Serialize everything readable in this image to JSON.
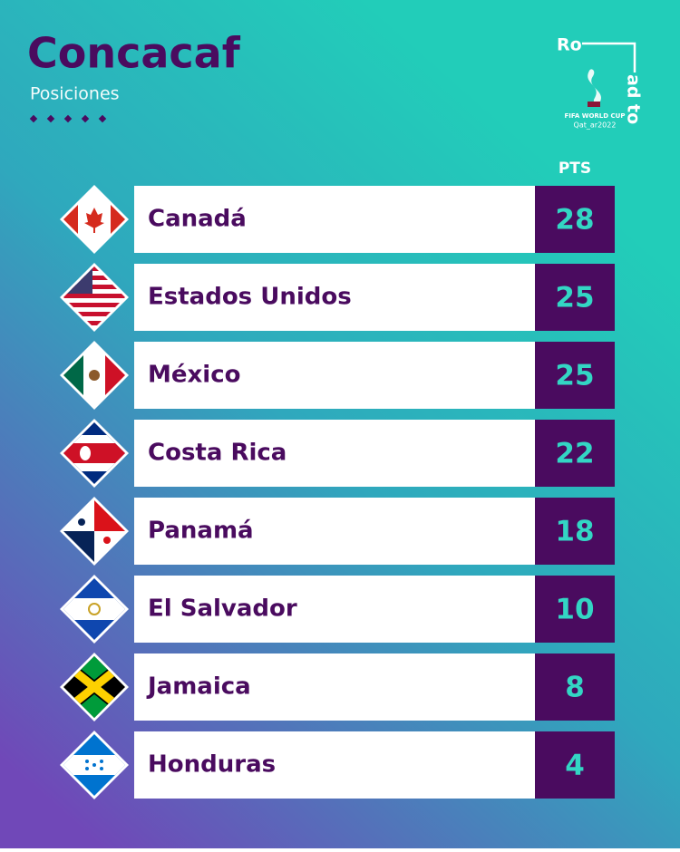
{
  "header": {
    "title": "Concacaf",
    "subtitle": "Posiciones",
    "logo": {
      "top": "Ro",
      "side": "ad to",
      "line1": "FIFA WORLD CUP",
      "line2": "Qat_ar2022"
    }
  },
  "table": {
    "points_header": "PTS",
    "rows": [
      {
        "team": "Canadá",
        "points": 28
      },
      {
        "team": "Estados Unidos",
        "points": 25
      },
      {
        "team": "México",
        "points": 25
      },
      {
        "team": "Costa Rica",
        "points": 22
      },
      {
        "team": "Panamá",
        "points": 18
      },
      {
        "team": "El Salvador",
        "points": 10
      },
      {
        "team": "Jamaica",
        "points": 8
      },
      {
        "team": "Honduras",
        "points": 4
      }
    ]
  }
}
